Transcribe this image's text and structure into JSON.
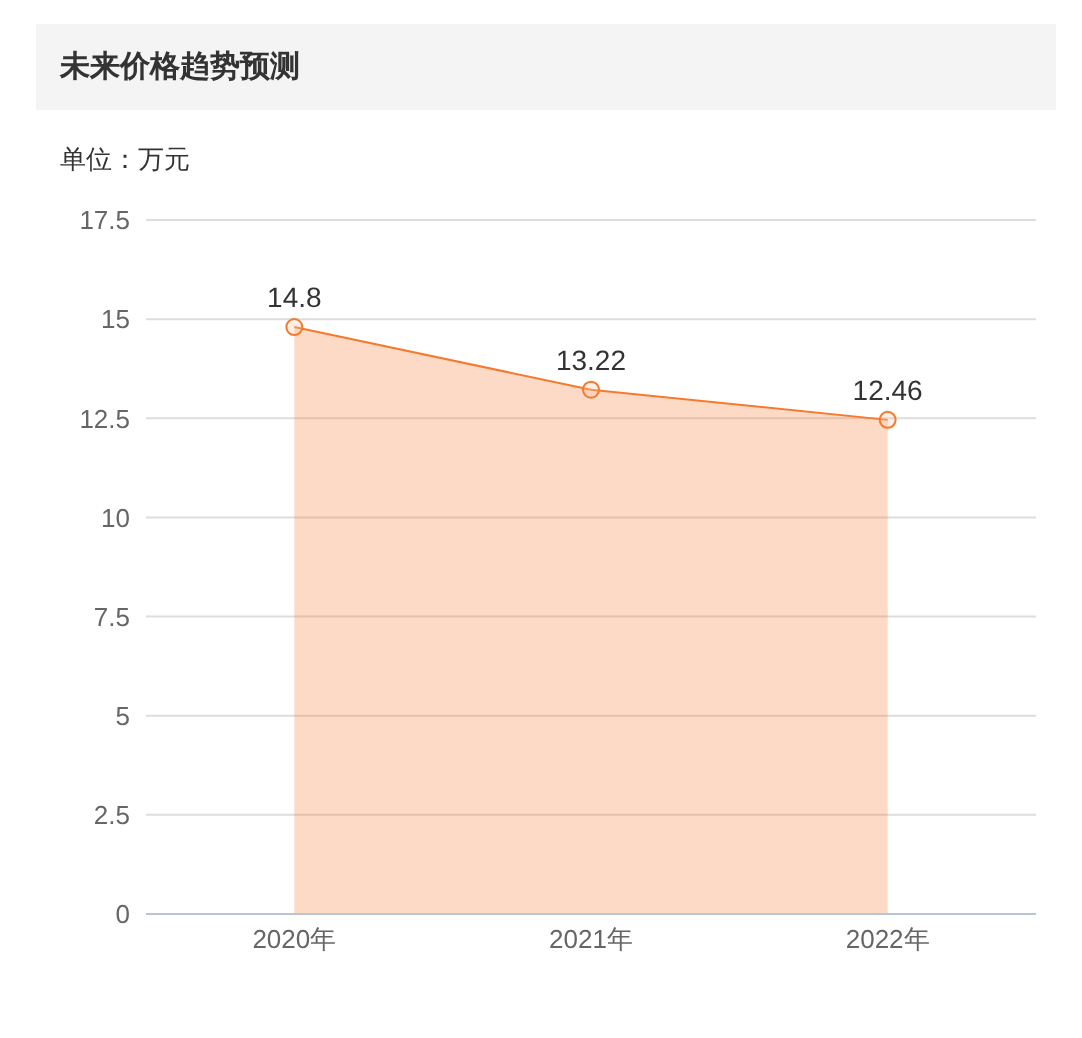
{
  "chart_data": {
    "type": "area",
    "title": "未来价格趋势预测",
    "subtitle": "单位：万元",
    "categories": [
      "2020年",
      "2021年",
      "2022年"
    ],
    "series": [
      {
        "color": "#f57a2e",
        "values": [
          14.8,
          13.22,
          12.46
        ]
      }
    ],
    "ylim": [
      0,
      17.5
    ],
    "yticks": [
      0,
      2.5,
      5,
      7.5,
      10,
      12.5,
      15,
      17.5
    ],
    "grid": "y",
    "marker": "circle",
    "data_labels": true,
    "legend": false
  }
}
